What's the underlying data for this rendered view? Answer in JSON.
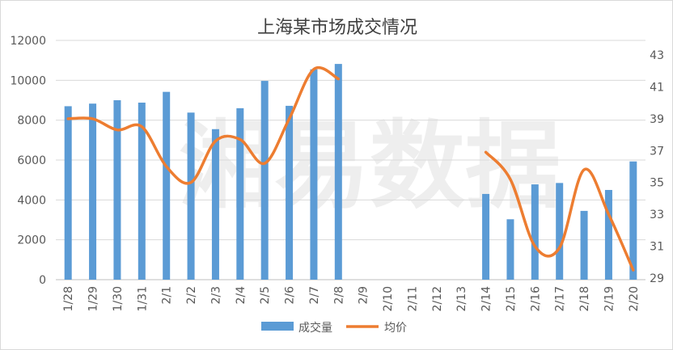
{
  "chart_data": {
    "type": "bar",
    "title": "上海某市场成交情况",
    "categories": [
      "1/28",
      "1/29",
      "1/30",
      "1/31",
      "2/1",
      "2/2",
      "2/3",
      "2/4",
      "2/5",
      "2/6",
      "2/7",
      "2/8",
      "2/9",
      "2/10",
      "2/11",
      "2/12",
      "2/13",
      "2/14",
      "2/15",
      "2/16",
      "2/17",
      "2/18",
      "2/19",
      "2/20"
    ],
    "series": [
      {
        "name": "成交量",
        "type": "bar",
        "axis": "left",
        "color": "#5b9bd5",
        "values": [
          8700,
          8830,
          9000,
          8880,
          9420,
          8380,
          7550,
          8600,
          9970,
          8720,
          10550,
          10820,
          null,
          null,
          null,
          null,
          null,
          4300,
          3030,
          4780,
          4850,
          3450,
          4500,
          5930
        ]
      },
      {
        "name": "均价",
        "type": "line",
        "axis": "right",
        "color": "#ed7d31",
        "values": [
          39.0,
          39.0,
          38.3,
          38.5,
          36.0,
          35.0,
          37.6,
          37.7,
          36.2,
          39.0,
          42.1,
          41.5,
          null,
          null,
          null,
          null,
          null,
          36.9,
          35.2,
          31.0,
          30.9,
          35.8,
          33.0,
          29.5
        ]
      }
    ],
    "y_left": {
      "min": 0,
      "max": 12000,
      "ticks": [
        0,
        2000,
        4000,
        6000,
        8000,
        10000,
        12000
      ]
    },
    "y_right": {
      "min": 29,
      "max": 43,
      "ticks": [
        29,
        31,
        33,
        35,
        37,
        39,
        41,
        43
      ]
    },
    "grid": true,
    "legend_position": "bottom",
    "watermark": "湘易数据"
  }
}
